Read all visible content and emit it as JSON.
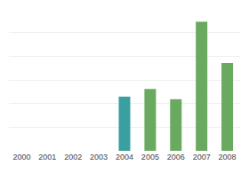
{
  "chart_data": {
    "type": "bar",
    "categories": [
      "2000",
      "2001",
      "2002",
      "2003",
      "2004",
      "2005",
      "2006",
      "2007",
      "2008"
    ],
    "values": [
      0,
      0,
      0,
      0,
      42,
      48,
      40,
      100,
      68
    ],
    "colors": [
      "#3a9fa0",
      "#6aaa60",
      "#6aaa60",
      "#6aaa60",
      "#3a9fa0",
      "#6aaa60",
      "#6aaa60",
      "#6aaa60",
      "#6aaa60"
    ],
    "ylim": [
      0,
      110
    ],
    "yticks": [
      18.333333333333332,
      36.666666666666664,
      55,
      73.33333333333333,
      91.66666666666666,
      110
    ],
    "grid": true,
    "tick_labels": "x"
  }
}
